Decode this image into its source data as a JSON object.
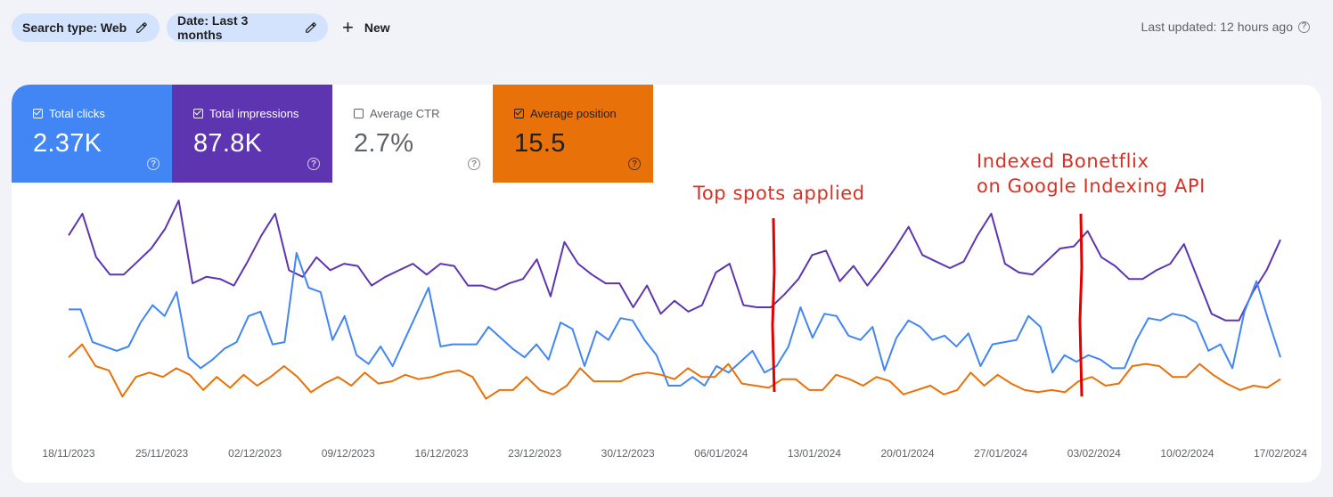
{
  "filters": {
    "search_type": "Search type: Web",
    "date": "Date: Last 3 months",
    "new_label": "New"
  },
  "last_updated": "Last updated: 12 hours ago",
  "metrics": [
    {
      "label": "Total clicks",
      "value": "2.37K",
      "checked": true,
      "color": "#4285f4"
    },
    {
      "label": "Total impressions",
      "value": "87.8K",
      "checked": true,
      "color": "#5e35b1"
    },
    {
      "label": "Average CTR",
      "value": "2.7%",
      "checked": false,
      "color": "#ffffff"
    },
    {
      "label": "Average position",
      "value": "15.5",
      "checked": true,
      "color": "#e8710a"
    }
  ],
  "annotations": {
    "top_spots": "Top spots applied",
    "indexing": "Indexed Bonetflix\non Google Indexing API"
  },
  "chart_data": {
    "type": "line",
    "x_ticks": [
      "18/11/2023",
      "25/11/2023",
      "02/12/2023",
      "09/12/2023",
      "16/12/2023",
      "23/12/2023",
      "30/12/2023",
      "06/01/2024",
      "13/01/2024",
      "20/01/2024",
      "27/01/2024",
      "03/02/2024",
      "10/02/2024",
      "17/02/2024"
    ],
    "y_axis_visible": false,
    "grid": false,
    "series": [
      {
        "name": "Total impressions",
        "color": "#5e35b1",
        "values": [
          68,
          78,
          58,
          50,
          50,
          56,
          62,
          71,
          84,
          46,
          49,
          48,
          45,
          56,
          68,
          78,
          52,
          49,
          58,
          52,
          55,
          54,
          45,
          49,
          52,
          55,
          50,
          55,
          54,
          45,
          45,
          43,
          46,
          48,
          57,
          40,
          65,
          55,
          50,
          46,
          46,
          35,
          45,
          32,
          38,
          33,
          36,
          51,
          55,
          36,
          35,
          35,
          41,
          48,
          59,
          61,
          47,
          54,
          45,
          53,
          62,
          72,
          59,
          56,
          53,
          56,
          68,
          78,
          55,
          51,
          50,
          56,
          62,
          63,
          70,
          58,
          54,
          48,
          48,
          52,
          55,
          64,
          48,
          32,
          29,
          29,
          42,
          52,
          66
        ]
      },
      {
        "name": "Total clicks",
        "color": "#4285f4",
        "values": [
          34,
          34,
          19,
          17,
          15,
          17,
          28,
          36,
          31,
          42,
          12,
          7,
          11,
          16,
          19,
          31,
          33,
          18,
          19,
          60,
          44,
          42,
          20,
          31,
          13,
          9,
          17,
          8,
          20,
          32,
          44,
          17,
          18,
          18,
          18,
          26,
          21,
          16,
          12,
          18,
          11,
          28,
          25,
          8,
          24,
          20,
          30,
          29,
          20,
          13,
          -1,
          -1,
          3,
          -1,
          8,
          5,
          10,
          15,
          5,
          8,
          17,
          35,
          21,
          32,
          31,
          22,
          20,
          26,
          6,
          21,
          29,
          26,
          20,
          22,
          17,
          23,
          8,
          18,
          19,
          20,
          31,
          26,
          5,
          13,
          10,
          13,
          11,
          7,
          7,
          20,
          30,
          29,
          32,
          31,
          28,
          15,
          18,
          7,
          33,
          47,
          29,
          12
        ]
      },
      {
        "name": "Average position",
        "color": "#e8710a",
        "values": [
          12,
          18,
          8,
          6,
          -6,
          3,
          5,
          3,
          7,
          4,
          -3,
          3,
          -2,
          4,
          -1,
          3,
          8,
          3,
          -4,
          0,
          3,
          -1,
          5,
          0,
          1,
          4,
          2,
          3,
          5,
          6,
          3,
          -7,
          -3,
          -3,
          3,
          -3,
          -5,
          -1,
          7,
          1,
          1,
          1,
          4,
          5,
          4,
          2,
          7,
          3,
          3,
          9,
          0,
          -1,
          -2,
          2,
          2,
          -3,
          -3,
          4,
          2,
          -1,
          3,
          1,
          -5,
          -3,
          -1,
          -5,
          -3,
          5,
          -1,
          4,
          0,
          -3,
          -4,
          -3,
          -4,
          1,
          3,
          -1,
          0,
          8,
          9,
          8,
          3,
          3,
          9,
          4,
          0,
          -3,
          -1,
          -2,
          2
        ]
      }
    ]
  }
}
